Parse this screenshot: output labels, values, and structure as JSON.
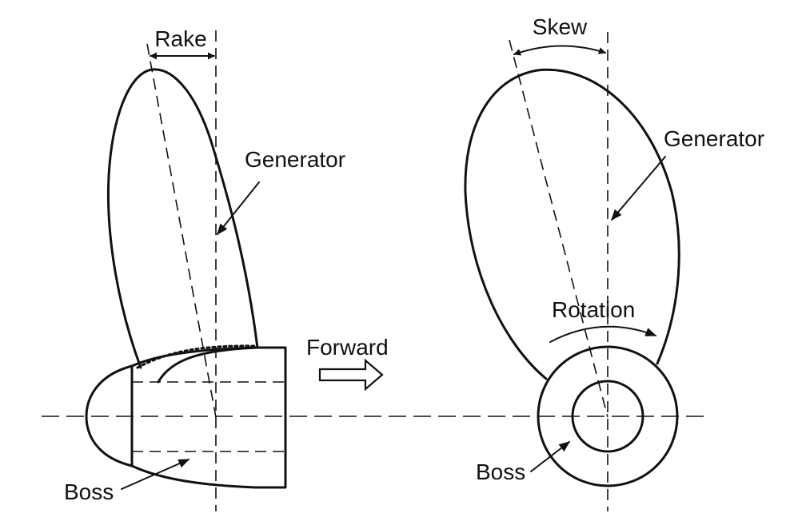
{
  "side_view": {
    "rake_label": "Rake",
    "generator_label": "Generator",
    "boss_label": "Boss"
  },
  "forward_label": "Forward",
  "front_view": {
    "skew_label": "Skew",
    "generator_label": "Generator",
    "rotation_label": "Rotation",
    "boss_label": "Boss"
  },
  "colors": {
    "line": "#111111",
    "background": "#ffffff"
  }
}
